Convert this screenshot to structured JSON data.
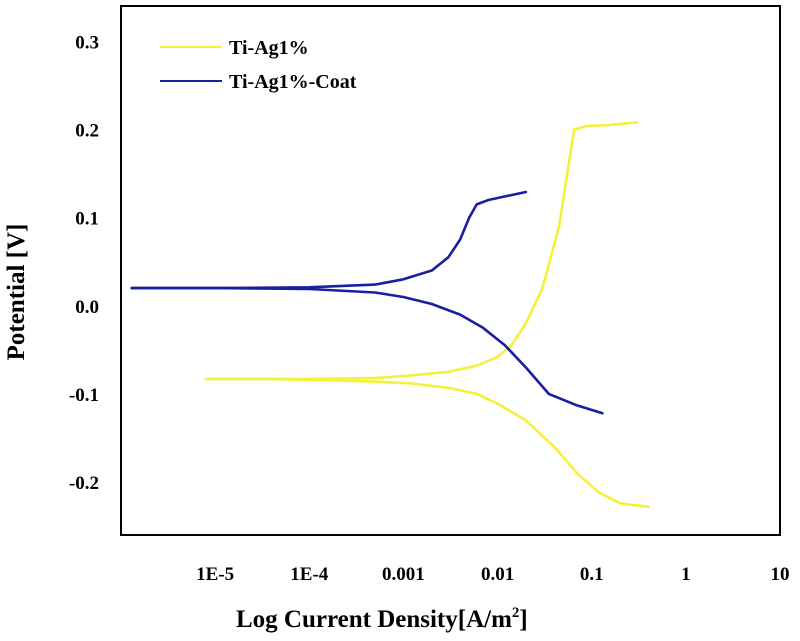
{
  "chart_data": {
    "type": "line",
    "title": "",
    "xlabel": "Log Current Density",
    "xlabel_unit_prefix": "[A/m",
    "xlabel_unit_exp": "2",
    "xlabel_unit_suffix": "]",
    "ylabel": "Potential [V]",
    "xscale": "log",
    "xlim": [
      1e-06,
      10
    ],
    "ylim": [
      -0.26,
      0.34
    ],
    "legend_position": "top-left",
    "x_ticks": [
      {
        "value": 1e-05,
        "label": "1E-5"
      },
      {
        "value": 0.0001,
        "label": "1E-4"
      },
      {
        "value": 0.001,
        "label": "0.001"
      },
      {
        "value": 0.01,
        "label": "0.01"
      },
      {
        "value": 0.1,
        "label": "0.1"
      },
      {
        "value": 1,
        "label": "1"
      },
      {
        "value": 10,
        "label": "10"
      }
    ],
    "y_ticks": [
      {
        "value": 0.3,
        "label": "0.3"
      },
      {
        "value": 0.2,
        "label": "0.2"
      },
      {
        "value": 0.1,
        "label": "0.1"
      },
      {
        "value": 0.0,
        "label": "0.0"
      },
      {
        "value": -0.1,
        "label": "-0.1"
      },
      {
        "value": -0.2,
        "label": "-0.2"
      }
    ],
    "series": [
      {
        "name": "Ti-Ag1%",
        "color": "#f5f03c",
        "anodic": [
          [
            8e-06,
            -0.083
          ],
          [
            3e-05,
            -0.083
          ],
          [
            0.0001,
            -0.083
          ],
          [
            0.0005,
            -0.082
          ],
          [
            0.0012,
            -0.079
          ],
          [
            0.003,
            -0.075
          ],
          [
            0.006,
            -0.068
          ],
          [
            0.01,
            -0.058
          ],
          [
            0.014,
            -0.045
          ],
          [
            0.02,
            -0.02
          ],
          [
            0.03,
            0.02
          ],
          [
            0.045,
            0.09
          ],
          [
            0.055,
            0.15
          ],
          [
            0.065,
            0.2
          ],
          [
            0.09,
            0.204
          ],
          [
            0.15,
            0.205
          ],
          [
            0.3,
            0.208
          ]
        ],
        "cathodic": [
          [
            8e-06,
            -0.083
          ],
          [
            3e-05,
            -0.083
          ],
          [
            0.0001,
            -0.084
          ],
          [
            0.0005,
            -0.086
          ],
          [
            0.0012,
            -0.088
          ],
          [
            0.003,
            -0.093
          ],
          [
            0.006,
            -0.1
          ],
          [
            0.01,
            -0.111
          ],
          [
            0.02,
            -0.13
          ],
          [
            0.04,
            -0.16
          ],
          [
            0.07,
            -0.19
          ],
          [
            0.12,
            -0.212
          ],
          [
            0.2,
            -0.224
          ],
          [
            0.4,
            -0.228
          ]
        ]
      },
      {
        "name": "Ti-Ag1%-Coat",
        "color": "#1a1ea0",
        "anodic": [
          [
            1.3e-06,
            0.02
          ],
          [
            1e-05,
            0.02
          ],
          [
            0.0001,
            0.021
          ],
          [
            0.0005,
            0.024
          ],
          [
            0.001,
            0.03
          ],
          [
            0.002,
            0.04
          ],
          [
            0.003,
            0.055
          ],
          [
            0.004,
            0.075
          ],
          [
            0.005,
            0.1
          ],
          [
            0.006,
            0.115
          ],
          [
            0.008,
            0.12
          ],
          [
            0.012,
            0.124
          ],
          [
            0.02,
            0.129
          ]
        ],
        "cathodic": [
          [
            1.3e-06,
            0.02
          ],
          [
            1e-05,
            0.02
          ],
          [
            0.0001,
            0.019
          ],
          [
            0.0005,
            0.015
          ],
          [
            0.001,
            0.01
          ],
          [
            0.002,
            0.002
          ],
          [
            0.004,
            -0.01
          ],
          [
            0.007,
            -0.025
          ],
          [
            0.012,
            -0.045
          ],
          [
            0.02,
            -0.07
          ],
          [
            0.035,
            -0.1
          ],
          [
            0.07,
            -0.113
          ],
          [
            0.13,
            -0.122
          ]
        ]
      }
    ]
  }
}
